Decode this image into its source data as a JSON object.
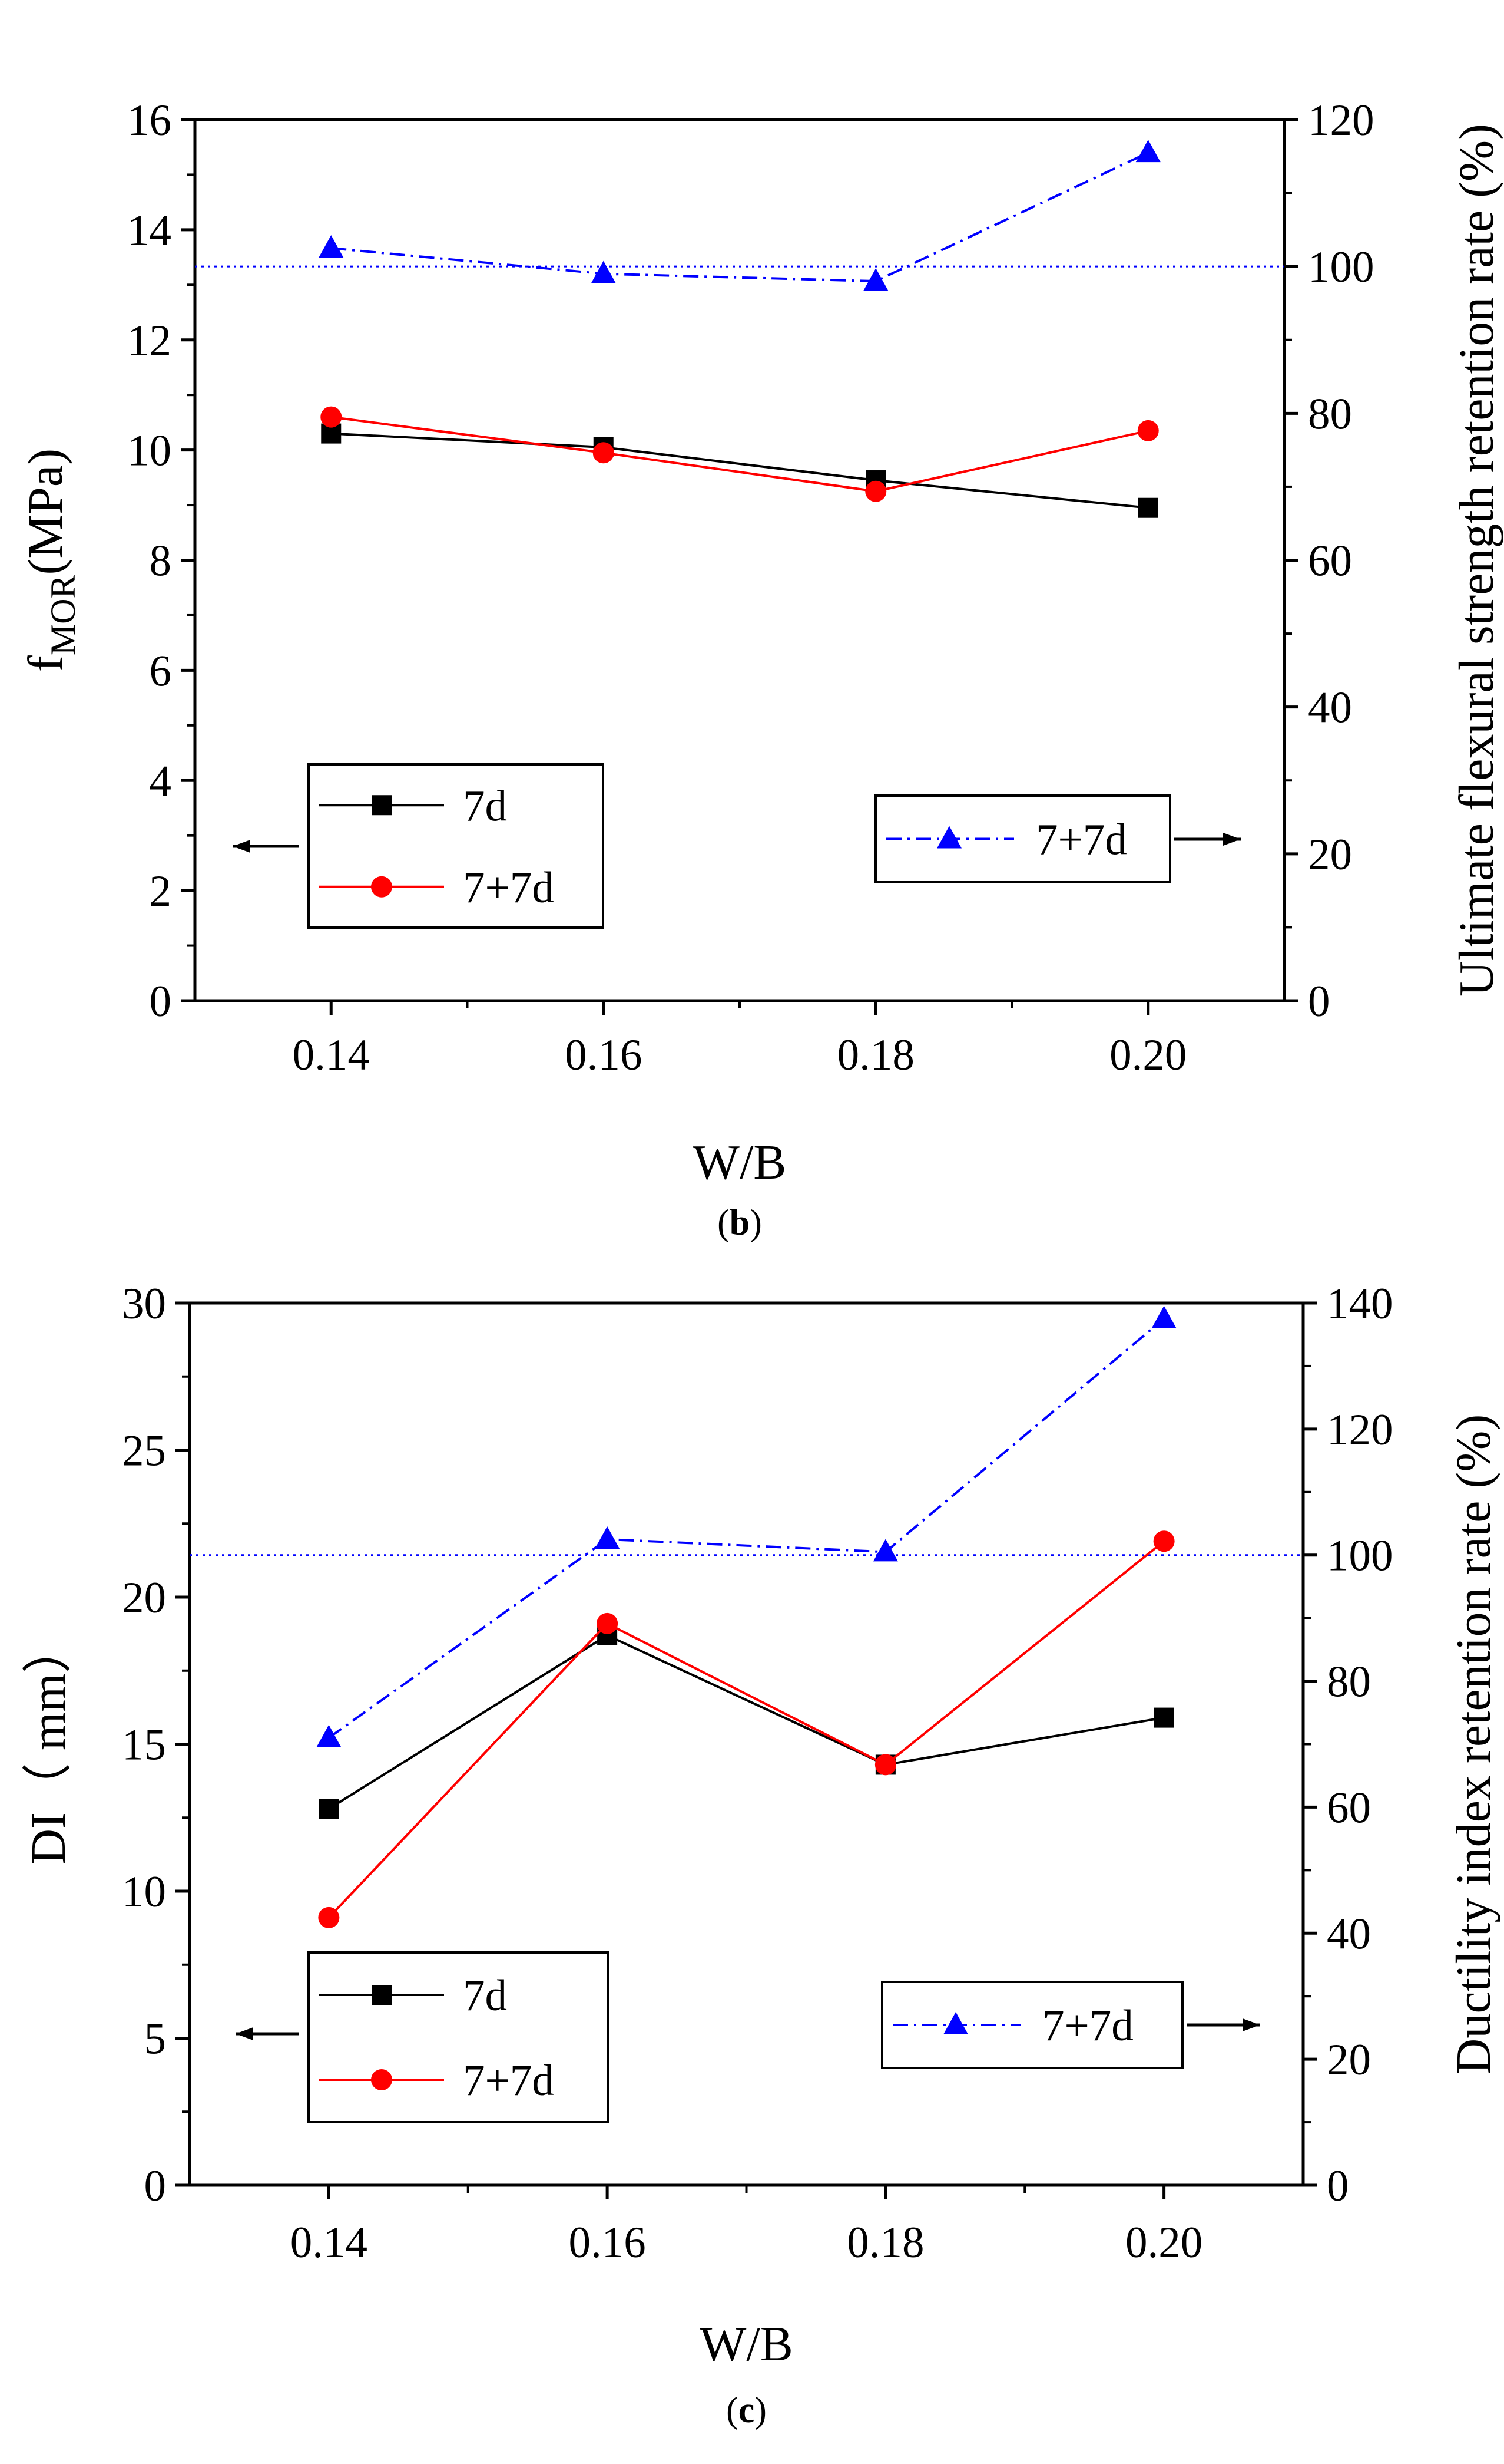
{
  "figure": {
    "panels": [
      {
        "caption": {
          "pre": "(",
          "letter": "b",
          "post": ")"
        },
        "left_axis_title": {
          "main": "f",
          "sub": "MOR",
          "post": "(MPa)"
        },
        "right_axis_title": "Ultimate flexural strength retention rate (%)",
        "x_axis_title": "W/B",
        "legend_left": [
          "7d",
          "7+7d"
        ],
        "legend_right": [
          "7+7d"
        ]
      },
      {
        "caption": {
          "pre": "(",
          "letter": "c",
          "post": ")"
        },
        "left_axis_title": {
          "main": "DI（ mm）",
          "sub": "",
          "post": ""
        },
        "right_axis_title": "Ductility index retention rate (%)",
        "x_axis_title": "W/B",
        "legend_left": [
          "7d",
          "7+7d"
        ],
        "legend_right": [
          "7+7d"
        ]
      }
    ]
  },
  "chart_data": [
    {
      "type": "line",
      "xlabel": "W/B",
      "ylabel": "fMOR(MPa)",
      "y2label": "Ultimate flexural strength retention rate (%)",
      "categories": [
        "0.14",
        "0.16",
        "0.18",
        "0.20"
      ],
      "xlim": [
        0.13,
        0.21
      ],
      "ylim": [
        0,
        16
      ],
      "y2lim": [
        0,
        120
      ],
      "yticks": [
        "0",
        "2",
        "4",
        "6",
        "8",
        "10",
        "12",
        "14",
        "16"
      ],
      "y2ticks": [
        "0",
        "20",
        "40",
        "60",
        "80",
        "100",
        "120"
      ],
      "series": [
        {
          "name": "7d",
          "axis": "left",
          "color": "#000000",
          "marker": "square",
          "line": "solid",
          "values": [
            10.3,
            10.05,
            9.45,
            8.95
          ]
        },
        {
          "name": "7+7d",
          "axis": "left",
          "color": "#ff0000",
          "marker": "circle",
          "line": "solid",
          "values": [
            10.6,
            9.95,
            9.25,
            10.35
          ]
        },
        {
          "name": "7+7d",
          "axis": "right",
          "color": "#0000ff",
          "marker": "triangle",
          "line": "dash-dot",
          "values": [
            102.5,
            99.0,
            98.0,
            115.5
          ]
        }
      ],
      "reference_line": {
        "axis": "right",
        "value": 100,
        "color": "#0000ff",
        "style": "dotted"
      },
      "legends": [
        {
          "placement": "bottom-left",
          "entries": [
            "7d",
            "7+7d"
          ],
          "arrow": "left"
        },
        {
          "placement": "bottom-right",
          "entries": [
            "7+7d"
          ],
          "arrow": "right"
        }
      ],
      "grid": false
    },
    {
      "type": "line",
      "xlabel": "W/B",
      "ylabel": "DI（ mm）",
      "y2label": "Ductility index retention rate (%)",
      "categories": [
        "0.14",
        "0.16",
        "0.18",
        "0.20"
      ],
      "xlim": [
        0.13,
        0.21
      ],
      "ylim": [
        0,
        30
      ],
      "y2lim": [
        0,
        140
      ],
      "yticks": [
        "0",
        "5",
        "10",
        "15",
        "20",
        "25",
        "30"
      ],
      "y2ticks": [
        "0",
        "20",
        "40",
        "60",
        "80",
        "100",
        "120",
        "140"
      ],
      "series": [
        {
          "name": "7d",
          "axis": "left",
          "color": "#000000",
          "marker": "square",
          "line": "solid",
          "values": [
            12.8,
            18.7,
            14.3,
            15.9
          ]
        },
        {
          "name": "7+7d",
          "axis": "left",
          "color": "#ff0000",
          "marker": "circle",
          "line": "solid",
          "values": [
            9.1,
            19.1,
            14.3,
            21.9
          ]
        },
        {
          "name": "7+7d",
          "axis": "right",
          "color": "#0000ff",
          "marker": "triangle",
          "line": "dash-dot",
          "values": [
            71,
            102.5,
            100.5,
            137.5
          ]
        }
      ],
      "reference_line": {
        "axis": "right",
        "value": 100,
        "color": "#0000ff",
        "style": "dotted"
      },
      "legends": [
        {
          "placement": "bottom-left",
          "entries": [
            "7d",
            "7+7d"
          ],
          "arrow": "left"
        },
        {
          "placement": "bottom-right",
          "entries": [
            "7+7d"
          ],
          "arrow": "right"
        }
      ],
      "grid": false
    }
  ]
}
